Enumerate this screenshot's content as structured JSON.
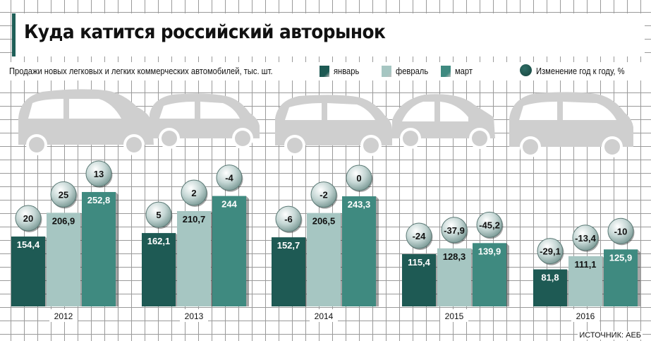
{
  "title": "Куда катится российский авторынок",
  "subtitle": "Продажи новых легковых и легких коммерческих автомобилей, тыс. шт.",
  "legend": {
    "series": [
      "январь",
      "февраль",
      "март"
    ],
    "change": "Изменение год к году, %"
  },
  "source": "ИСТОЧНИК: АЕБ",
  "colors": {
    "jan": "#1e5a54",
    "feb": "#a6c6c2",
    "mar": "#3f8a80",
    "car": "#cfcfcf",
    "accent": "#1f5f58"
  },
  "chart_data": {
    "type": "bar",
    "categories": [
      "2012",
      "2013",
      "2014",
      "2015",
      "2016"
    ],
    "series": [
      {
        "name": "январь",
        "values": [
          154.4,
          162.1,
          152.7,
          115.4,
          81.8
        ],
        "labels": [
          "154,4",
          "162,1",
          "152,7",
          "115,4",
          "81,8"
        ]
      },
      {
        "name": "февраль",
        "values": [
          206.9,
          210.7,
          206.5,
          128.3,
          111.1
        ],
        "labels": [
          "206,9",
          "210,7",
          "206,5",
          "128,3",
          "111,1"
        ]
      },
      {
        "name": "март",
        "values": [
          252.8,
          244,
          243.3,
          139.9,
          125.9
        ],
        "labels": [
          "252,8",
          "244",
          "243,3",
          "139,9",
          "125,9"
        ]
      }
    ],
    "yoy_change": [
      {
        "values": [
          20,
          5,
          -6,
          -24,
          -29.1
        ],
        "labels": [
          "20",
          "5",
          "-6",
          "-24",
          "-29,1"
        ]
      },
      {
        "values": [
          25,
          2,
          -2,
          -37.9,
          -13.4
        ],
        "labels": [
          "25",
          "2",
          "-2",
          "-37,9",
          "-13,4"
        ]
      },
      {
        "values": [
          13,
          -4,
          0,
          -45.2,
          -10
        ],
        "labels": [
          "13",
          "-4",
          "0",
          "-45,2",
          "-10"
        ]
      }
    ],
    "ylim": [
      0,
      260
    ],
    "grid": true,
    "legend_position": "top"
  }
}
